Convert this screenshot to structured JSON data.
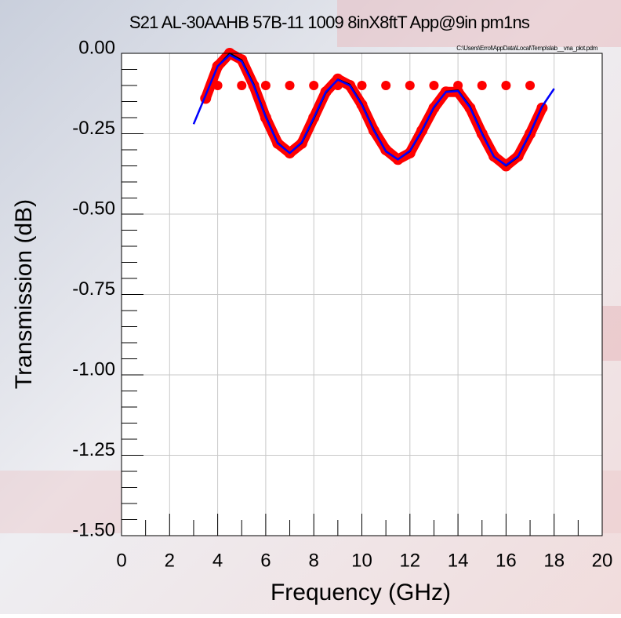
{
  "chart_data": {
    "type": "line",
    "title": "S21 AL-30AAHB 57B-11 1009 8inX8ftT App@9in pm1ns",
    "file_path": "C:\\Users\\Errol\\AppData\\Local\\Temp\\slab__vna_plot.pdm",
    "x_label": "Frequency (GHz)",
    "y_label": "Transmission (dB)",
    "xlim": [
      0,
      20
    ],
    "ylim": [
      -1.5,
      0
    ],
    "xticks": [
      0,
      2,
      4,
      6,
      8,
      10,
      12,
      14,
      16,
      18,
      20
    ],
    "yticks": [
      {
        "value": 0,
        "label": "0.00"
      },
      -0.25,
      {
        "value": -0.5,
        "label": "-0.50"
      },
      -0.75,
      {
        "value": -1,
        "label": "-1.00"
      },
      -1.25,
      {
        "value": -1.5,
        "label": "-1.50"
      }
    ],
    "grid": true,
    "series": [
      {
        "color": "#ff0000",
        "style": "markers",
        "x": [
          3.5,
          4,
          4.5,
          5,
          5.5,
          6,
          6.5,
          7,
          7.5,
          8,
          8.5,
          9,
          9.5,
          10,
          10.5,
          11,
          11.5,
          12,
          12.5,
          13,
          13.5,
          14,
          14.5,
          15,
          15.5,
          16,
          16.5,
          17,
          17.5
        ],
        "values": [
          -0.14,
          -0.04,
          0,
          -0.02,
          -0.1,
          -0.2,
          -0.28,
          -0.31,
          -0.28,
          -0.2,
          -0.12,
          -0.08,
          -0.1,
          -0.16,
          -0.24,
          -0.3,
          -0.33,
          -0.31,
          -0.24,
          -0.17,
          -0.12,
          -0.12,
          -0.17,
          -0.25,
          -0.32,
          -0.35,
          -0.32,
          -0.25,
          -0.17
        ]
      },
      {
        "color": "#ff0000",
        "style": "dots",
        "x": [
          4,
          5,
          6,
          7,
          8,
          9,
          10,
          11,
          12,
          13,
          14,
          15,
          16,
          17
        ],
        "values": [
          -0.1,
          -0.1,
          -0.1,
          -0.1,
          -0.1,
          -0.1,
          -0.1,
          -0.1,
          -0.1,
          -0.1,
          -0.1,
          -0.1,
          -0.1,
          -0.1
        ]
      },
      {
        "color": "#000000",
        "style": "line",
        "x": [
          3,
          3.5,
          4,
          4.5,
          5,
          5.5,
          6,
          6.5,
          7,
          7.5,
          8,
          8.5,
          9,
          9.5,
          10,
          10.5,
          11,
          11.5,
          12,
          12.5,
          13,
          13.5,
          14,
          14.5,
          15,
          15.5,
          16,
          16.5,
          17,
          17.5,
          18
        ],
        "values": [
          -0.22,
          -0.13,
          -0.04,
          0,
          -0.021,
          -0.096,
          -0.195,
          -0.278,
          -0.31,
          -0.279,
          -0.204,
          -0.123,
          -0.081,
          -0.097,
          -0.157,
          -0.237,
          -0.304,
          -0.33,
          -0.305,
          -0.242,
          -0.169,
          -0.119,
          -0.115,
          -0.165,
          -0.247,
          -0.321,
          -0.35,
          -0.322,
          -0.25,
          -0.167,
          -0.11
        ]
      },
      {
        "color": "#0000ff",
        "style": "line",
        "x": [
          3,
          3.5,
          4,
          4.5,
          5,
          5.5,
          6,
          6.5,
          7,
          7.5,
          8,
          8.5,
          9,
          9.5,
          10,
          10.5,
          11,
          11.5,
          12,
          12.5,
          13,
          13.5,
          14,
          14.5,
          15,
          15.5,
          16,
          16.5,
          17,
          17.5,
          18
        ],
        "values": [
          -0.22,
          -0.13,
          -0.04,
          -0.005,
          -0.025,
          -0.1,
          -0.198,
          -0.28,
          -0.31,
          -0.277,
          -0.2,
          -0.12,
          -0.082,
          -0.1,
          -0.16,
          -0.24,
          -0.305,
          -0.33,
          -0.303,
          -0.24,
          -0.167,
          -0.12,
          -0.117,
          -0.168,
          -0.25,
          -0.322,
          -0.348,
          -0.32,
          -0.248,
          -0.165,
          -0.11
        ]
      }
    ]
  }
}
